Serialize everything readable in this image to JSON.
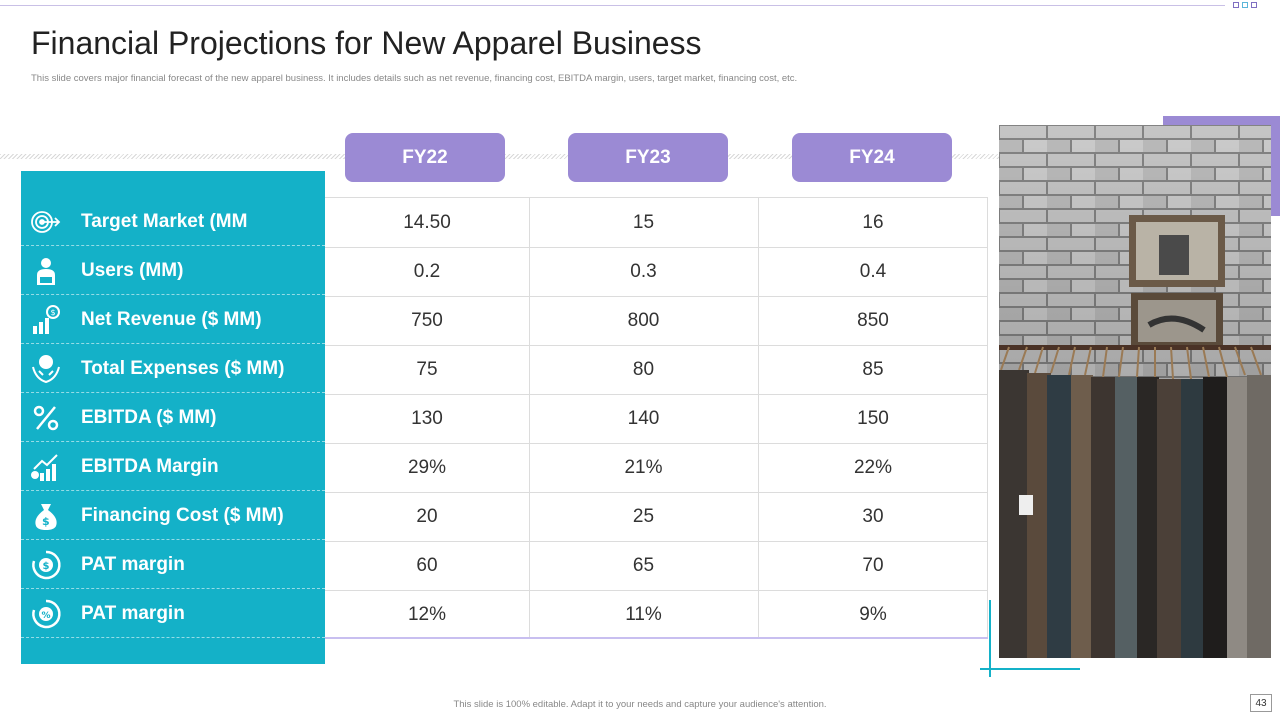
{
  "title": "Financial Projections for New Apparel Business",
  "subtitle": "This slide covers major financial forecast of the new apparel business. It includes details such as net revenue, financing cost, EBITDA  margin,  users, target market,  financing cost, etc.",
  "years": [
    "FY22",
    "FY23",
    "FY24"
  ],
  "rows": [
    {
      "label": "Target Market (MM",
      "icon": "target-icon",
      "values": [
        "14.50",
        "15",
        "16"
      ]
    },
    {
      "label": "Users (MM)",
      "icon": "user-icon",
      "values": [
        "0.2",
        "0.3",
        "0.4"
      ]
    },
    {
      "label": "Net Revenue ($ MM)",
      "icon": "revenue-chart-icon",
      "values": [
        "750",
        "800",
        "850"
      ]
    },
    {
      "label": "Total Expenses ($ MM)",
      "icon": "hand-coin-icon",
      "values": [
        "75",
        "80",
        "85"
      ]
    },
    {
      "label": "EBITDA ($ MM)",
      "icon": "percent-icon",
      "values": [
        "130",
        "140",
        "150"
      ]
    },
    {
      "label": "EBITDA Margin",
      "icon": "growth-chart-icon",
      "values": [
        "29%",
        "21%",
        "22%"
      ]
    },
    {
      "label": "Financing Cost ($ MM)",
      "icon": "money-bag-icon",
      "values": [
        "20",
        "25",
        "30"
      ]
    },
    {
      "label": "PAT margin",
      "icon": "dollar-cycle-icon",
      "values": [
        "60",
        "65",
        "70"
      ]
    },
    {
      "label": "PAT margin",
      "icon": "percent-cycle-icon",
      "values": [
        "12%",
        "11%",
        "9%"
      ]
    }
  ],
  "footer": "This slide is 100% editable.  Adapt it to your needs and capture your audience's attention.",
  "page_number": "43",
  "colors": {
    "teal": "#14b1c8",
    "purple": "#9b8ad4"
  }
}
